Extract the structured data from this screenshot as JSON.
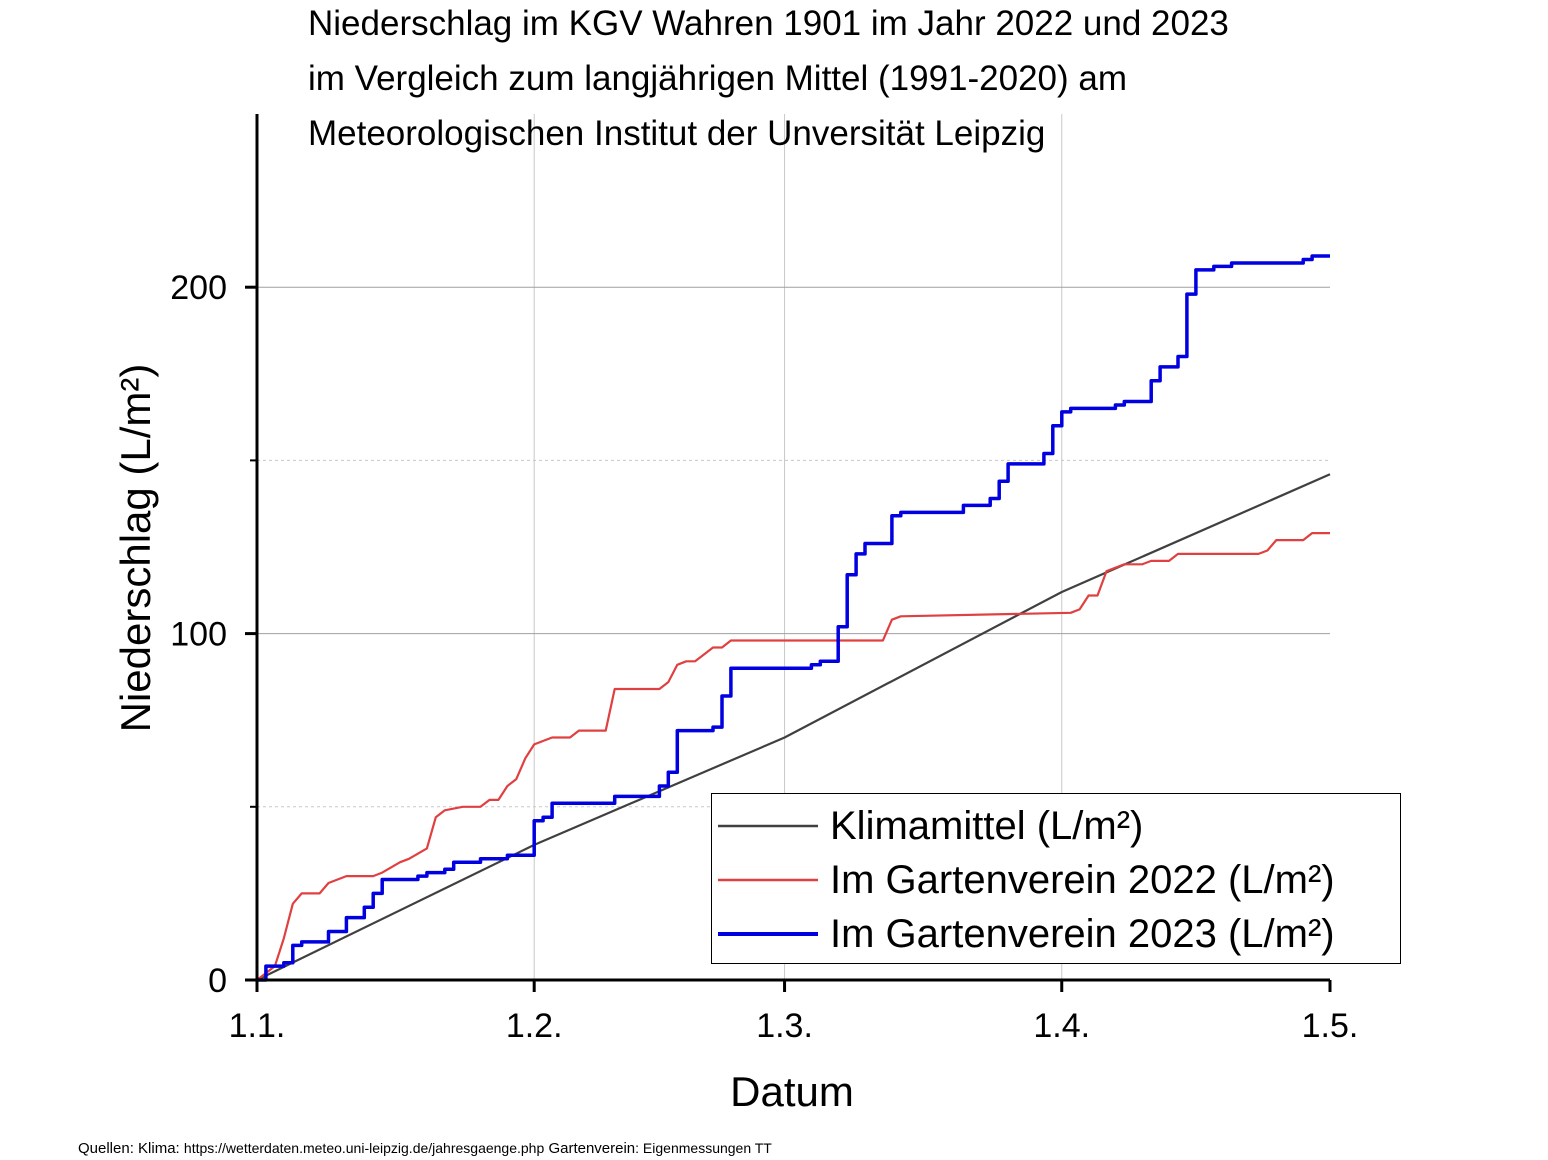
{
  "chart_data": {
    "type": "line",
    "title_lines": [
      "Niederschlag im KGV Wahren 1901 im Jahr 2022 und 2023",
      "im Vergleich zum langjährigen Mittel (1991-2020) am",
      "Meteorologischen Institut der Unversität Leipzig"
    ],
    "xlabel": "Datum",
    "ylabel": "Niederschlag (L/m²)",
    "xlim": [
      0,
      120
    ],
    "ylim": [
      0,
      250
    ],
    "x_ticks": [
      {
        "label": "1.1.",
        "day": 0
      },
      {
        "label": "1.2.",
        "day": 31
      },
      {
        "label": "1.3.",
        "day": 59
      },
      {
        "label": "1.4.",
        "day": 90
      },
      {
        "label": "1.5.",
        "day": 120
      }
    ],
    "y_ticks": [
      0,
      100,
      200
    ],
    "y_minor_gridlines": [
      50,
      150
    ],
    "grid": true,
    "legend_position": "bottom-right",
    "series": [
      {
        "name": "Klimamittel (L/m²)",
        "color": "#404040",
        "step": false,
        "points": [
          [
            0,
            0
          ],
          [
            31,
            39
          ],
          [
            59,
            70
          ],
          [
            90,
            112
          ],
          [
            120,
            146
          ]
        ]
      },
      {
        "name": "Im Gartenverein 2022 (L/m²)",
        "color": "#e04040",
        "step": false,
        "points": [
          [
            0,
            0
          ],
          [
            1,
            2
          ],
          [
            2,
            4
          ],
          [
            3,
            12
          ],
          [
            4,
            22
          ],
          [
            5,
            25
          ],
          [
            7,
            25
          ],
          [
            8,
            28
          ],
          [
            10,
            30
          ],
          [
            13,
            30
          ],
          [
            14,
            31
          ],
          [
            16,
            34
          ],
          [
            17,
            35
          ],
          [
            19,
            38
          ],
          [
            20,
            47
          ],
          [
            21,
            49
          ],
          [
            23,
            50
          ],
          [
            25,
            50
          ],
          [
            26,
            52
          ],
          [
            27,
            52
          ],
          [
            28,
            56
          ],
          [
            29,
            58
          ],
          [
            30,
            64
          ],
          [
            31,
            68
          ],
          [
            33,
            70
          ],
          [
            35,
            70
          ],
          [
            36,
            72
          ],
          [
            39,
            72
          ],
          [
            40,
            84
          ],
          [
            45,
            84
          ],
          [
            46,
            86
          ],
          [
            47,
            91
          ],
          [
            48,
            92
          ],
          [
            49,
            92
          ],
          [
            50,
            94
          ],
          [
            51,
            96
          ],
          [
            52,
            96
          ],
          [
            53,
            98
          ],
          [
            70,
            98
          ],
          [
            71,
            104
          ],
          [
            72,
            105
          ],
          [
            91,
            106
          ],
          [
            92,
            107
          ],
          [
            93,
            111
          ],
          [
            94,
            111
          ],
          [
            95,
            118
          ],
          [
            97,
            120
          ],
          [
            99,
            120
          ],
          [
            100,
            121
          ],
          [
            102,
            121
          ],
          [
            103,
            123
          ],
          [
            112,
            123
          ],
          [
            113,
            124
          ],
          [
            114,
            127
          ],
          [
            117,
            127
          ],
          [
            118,
            129
          ],
          [
            120,
            129
          ]
        ]
      },
      {
        "name": "Im Gartenverein 2023 (L/m²)",
        "color": "#0000e0",
        "step": true,
        "points": [
          [
            0,
            0
          ],
          [
            1,
            4
          ],
          [
            3,
            5
          ],
          [
            4,
            10
          ],
          [
            5,
            11
          ],
          [
            8,
            14
          ],
          [
            10,
            18
          ],
          [
            12,
            21
          ],
          [
            13,
            25
          ],
          [
            14,
            29
          ],
          [
            18,
            30
          ],
          [
            19,
            31
          ],
          [
            21,
            32
          ],
          [
            22,
            34
          ],
          [
            25,
            35
          ],
          [
            27,
            35
          ],
          [
            28,
            36
          ],
          [
            31,
            46
          ],
          [
            32,
            47
          ],
          [
            33,
            51
          ],
          [
            40,
            53
          ],
          [
            45,
            56
          ],
          [
            46,
            60
          ],
          [
            47,
            72
          ],
          [
            51,
            73
          ],
          [
            52,
            82
          ],
          [
            53,
            90
          ],
          [
            62,
            91
          ],
          [
            63,
            92
          ],
          [
            65,
            102
          ],
          [
            66,
            117
          ],
          [
            67,
            123
          ],
          [
            68,
            126
          ],
          [
            71,
            134
          ],
          [
            72,
            135
          ],
          [
            79,
            137
          ],
          [
            82,
            139
          ],
          [
            83,
            144
          ],
          [
            84,
            149
          ],
          [
            88,
            152
          ],
          [
            89,
            160
          ],
          [
            90,
            164
          ],
          [
            91,
            165
          ],
          [
            96,
            166
          ],
          [
            97,
            167
          ],
          [
            100,
            173
          ],
          [
            101,
            177
          ],
          [
            103,
            180
          ],
          [
            104,
            198
          ],
          [
            105,
            205
          ],
          [
            107,
            206
          ],
          [
            109,
            207
          ],
          [
            117,
            208
          ],
          [
            118,
            209
          ],
          [
            120,
            209
          ]
        ]
      }
    ]
  },
  "source_note": {
    "quellen_label": "Quellen:",
    "klima_label": "Klima:",
    "url": "https://wetterdaten.meteo.uni-leipzig.de/jahresgaenge.php",
    "gartenverein_label": "Gartenverein",
    "gartenverein_text": ": Eigenmessungen TT"
  }
}
